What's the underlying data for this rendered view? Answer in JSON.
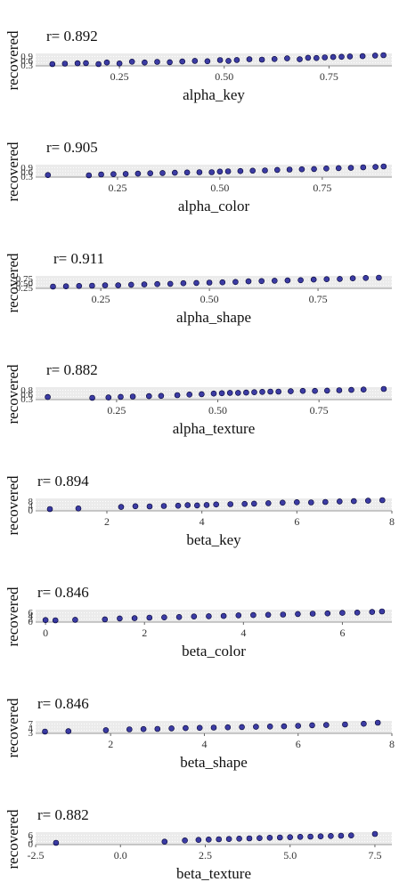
{
  "accent": "#00008B",
  "panel_bg": "#EBEBEB",
  "chart_data": [
    {
      "type": "scatter",
      "xlabel": "alpha_key",
      "ylabel": "recovered",
      "annotation": "r= 0.892",
      "xlim": [
        0.05,
        0.9
      ],
      "xticks": [
        "0.25",
        "0.50",
        "0.75"
      ],
      "yticks": [
        "0.9",
        "0.6",
        "0.3"
      ],
      "grid": true,
      "x": [
        0.09,
        0.12,
        0.15,
        0.17,
        0.2,
        0.22,
        0.25,
        0.28,
        0.31,
        0.34,
        0.37,
        0.4,
        0.43,
        0.46,
        0.49,
        0.51,
        0.53,
        0.56,
        0.59,
        0.62,
        0.65,
        0.68,
        0.7,
        0.72,
        0.74,
        0.76,
        0.78,
        0.8,
        0.83,
        0.86,
        0.88
      ],
      "y": [
        0.3,
        0.33,
        0.35,
        0.36,
        0.3,
        0.4,
        0.34,
        0.45,
        0.4,
        0.44,
        0.42,
        0.46,
        0.5,
        0.48,
        0.55,
        0.5,
        0.56,
        0.6,
        0.58,
        0.62,
        0.66,
        0.6,
        0.7,
        0.68,
        0.72,
        0.74,
        0.76,
        0.78,
        0.8,
        0.84,
        0.86
      ]
    },
    {
      "type": "scatter",
      "xlabel": "alpha_color",
      "ylabel": "recovered",
      "annotation": "r= 0.905",
      "xlim": [
        0.05,
        0.92
      ],
      "xticks": [
        "0.25",
        "0.50",
        "0.75"
      ],
      "yticks": [
        "0.9",
        "0.6",
        "0.3"
      ],
      "grid": true,
      "x": [
        0.08,
        0.18,
        0.21,
        0.24,
        0.27,
        0.3,
        0.33,
        0.36,
        0.39,
        0.42,
        0.45,
        0.48,
        0.5,
        0.52,
        0.55,
        0.58,
        0.61,
        0.64,
        0.67,
        0.7,
        0.73,
        0.76,
        0.79,
        0.82,
        0.85,
        0.88,
        0.9
      ],
      "y": [
        0.3,
        0.28,
        0.34,
        0.36,
        0.38,
        0.4,
        0.42,
        0.44,
        0.46,
        0.48,
        0.5,
        0.5,
        0.54,
        0.56,
        0.58,
        0.6,
        0.62,
        0.66,
        0.68,
        0.7,
        0.72,
        0.76,
        0.78,
        0.8,
        0.84,
        0.86,
        0.9
      ]
    },
    {
      "type": "scatter",
      "xlabel": "alpha_shape",
      "ylabel": "recovered",
      "annotation": "r= 0.911",
      "xlim": [
        0.1,
        0.92
      ],
      "xticks": [
        "0.25",
        "0.50",
        "0.75"
      ],
      "yticks": [
        "0.75",
        "0.50",
        "0.25"
      ],
      "grid": true,
      "x": [
        0.14,
        0.17,
        0.2,
        0.23,
        0.26,
        0.29,
        0.32,
        0.35,
        0.38,
        0.41,
        0.44,
        0.47,
        0.5,
        0.53,
        0.56,
        0.59,
        0.62,
        0.65,
        0.68,
        0.71,
        0.74,
        0.77,
        0.8,
        0.83,
        0.86,
        0.89
      ],
      "y": [
        0.22,
        0.24,
        0.26,
        0.28,
        0.3,
        0.3,
        0.34,
        0.36,
        0.38,
        0.4,
        0.44,
        0.46,
        0.48,
        0.5,
        0.52,
        0.56,
        0.58,
        0.6,
        0.62,
        0.64,
        0.68,
        0.7,
        0.72,
        0.76,
        0.78,
        0.8
      ]
    },
    {
      "type": "scatter",
      "xlabel": "alpha_texture",
      "ylabel": "recovered",
      "annotation": "r= 0.882",
      "xlim": [
        0.05,
        0.93
      ],
      "xticks": [
        "0.25",
        "0.50",
        "0.75"
      ],
      "yticks": [
        "0.8",
        "0.6",
        "0.3"
      ],
      "grid": true,
      "x": [
        0.08,
        0.19,
        0.23,
        0.26,
        0.29,
        0.33,
        0.36,
        0.4,
        0.43,
        0.46,
        0.49,
        0.51,
        0.53,
        0.55,
        0.57,
        0.59,
        0.61,
        0.63,
        0.65,
        0.68,
        0.71,
        0.74,
        0.77,
        0.8,
        0.83,
        0.86,
        0.91
      ],
      "y": [
        0.35,
        0.3,
        0.32,
        0.36,
        0.38,
        0.4,
        0.42,
        0.46,
        0.5,
        0.52,
        0.56,
        0.58,
        0.6,
        0.6,
        0.62,
        0.64,
        0.66,
        0.68,
        0.68,
        0.7,
        0.72,
        0.72,
        0.74,
        0.76,
        0.78,
        0.8,
        0.84
      ]
    },
    {
      "type": "scatter",
      "xlabel": "beta_key",
      "ylabel": "recovered",
      "annotation": "r= 0.894",
      "xlim": [
        0.5,
        8.0
      ],
      "xticks": [
        "2",
        "4",
        "6",
        "8"
      ],
      "yticks": [
        "8",
        "4",
        "0"
      ],
      "grid": true,
      "x": [
        0.8,
        1.4,
        2.3,
        2.6,
        2.9,
        3.2,
        3.5,
        3.7,
        3.9,
        4.1,
        4.3,
        4.6,
        4.9,
        5.1,
        5.4,
        5.7,
        6.0,
        6.3,
        6.6,
        6.9,
        7.2,
        7.5,
        7.8
      ],
      "y": [
        0.5,
        1.0,
        2.2,
        2.8,
        2.6,
        3.0,
        3.2,
        3.6,
        3.4,
        3.8,
        4.2,
        4.4,
        4.6,
        4.8,
        5.2,
        5.6,
        6.0,
        5.8,
        6.2,
        6.6,
        6.8,
        7.2,
        7.6
      ]
    },
    {
      "type": "scatter",
      "xlabel": "beta_color",
      "ylabel": "recovered",
      "annotation": "r= 0.846",
      "xlim": [
        -0.2,
        7.0
      ],
      "xticks": [
        "0",
        "2",
        "4",
        "6"
      ],
      "yticks": [
        "6",
        "4",
        "2",
        "0"
      ],
      "grid": true,
      "x": [
        0.0,
        0.2,
        0.6,
        1.2,
        1.5,
        1.8,
        2.1,
        2.4,
        2.7,
        3.0,
        3.3,
        3.6,
        3.9,
        4.2,
        4.5,
        4.8,
        5.1,
        5.4,
        5.7,
        6.0,
        6.3,
        6.6,
        6.8
      ],
      "y": [
        0.3,
        0.1,
        0.5,
        0.8,
        1.4,
        1.6,
        2.0,
        2.2,
        2.4,
        2.8,
        3.0,
        3.2,
        3.6,
        3.8,
        4.0,
        4.2,
        4.6,
        4.8,
        5.0,
        5.4,
        5.6,
        6.0,
        6.4
      ]
    },
    {
      "type": "scatter",
      "xlabel": "beta_shape",
      "ylabel": "recovered",
      "annotation": "r= 0.846",
      "xlim": [
        0.4,
        8.0
      ],
      "xticks": [
        "2",
        "4",
        "6",
        "8"
      ],
      "yticks": [
        "7",
        "4",
        "3"
      ],
      "grid": true,
      "x": [
        0.6,
        1.1,
        1.9,
        2.4,
        2.7,
        3.0,
        3.3,
        3.6,
        3.9,
        4.2,
        4.5,
        4.8,
        5.1,
        5.4,
        5.7,
        6.0,
        6.3,
        6.6,
        7.0,
        7.4,
        7.7
      ],
      "y": [
        0.5,
        0.8,
        1.6,
        2.2,
        2.4,
        2.6,
        3.0,
        3.2,
        3.4,
        3.6,
        3.8,
        4.0,
        4.2,
        4.4,
        4.6,
        5.0,
        5.4,
        5.6,
        6.0,
        6.6,
        7.4
      ]
    },
    {
      "type": "scatter",
      "xlabel": "beta_texture",
      "ylabel": "recovered",
      "annotation": "r= 0.882",
      "xlim": [
        -2.5,
        8.0
      ],
      "xticks": [
        "-2.5",
        "0.0",
        "2.5",
        "5.0",
        "7.5"
      ],
      "yticks": [
        "6",
        "3",
        "0"
      ],
      "grid": true,
      "x": [
        -1.9,
        1.3,
        1.9,
        2.3,
        2.6,
        2.9,
        3.2,
        3.5,
        3.8,
        4.1,
        4.4,
        4.7,
        5.0,
        5.3,
        5.6,
        5.9,
        6.2,
        6.5,
        6.8,
        7.5
      ],
      "y": [
        0.0,
        0.8,
        1.6,
        2.0,
        2.2,
        2.4,
        2.6,
        2.8,
        3.0,
        3.2,
        3.4,
        3.6,
        3.8,
        4.0,
        4.2,
        4.4,
        4.6,
        4.8,
        5.0,
        6.0
      ]
    }
  ]
}
